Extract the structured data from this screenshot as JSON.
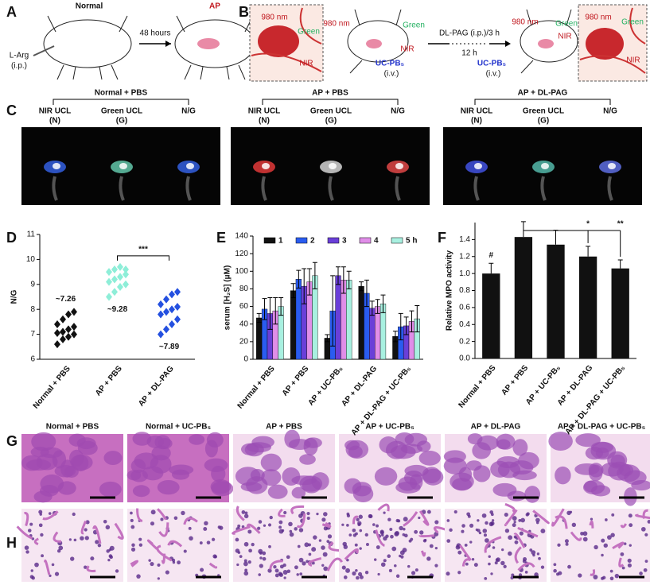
{
  "figure": {
    "A": {
      "label": "A",
      "normal": "Normal",
      "ap": "AP",
      "time": "48 hours",
      "injection": [
        "L-Arg",
        "(i.p.)"
      ]
    },
    "B": {
      "label": "B",
      "inset_left": {
        "laser": "980 nm",
        "green": "Green",
        "nir": "NIR"
      },
      "mouse_left": {
        "laser": "980 nm",
        "green": "Green",
        "nir": "NIR",
        "probe": [
          "UC-PB₅",
          "(i.v.)"
        ]
      },
      "treatment": "DL-PAG (i.p.)/3 h",
      "interval": "12 h",
      "mouse_right": {
        "laser": "980 nm",
        "green": "Green",
        "nir": "NIR",
        "probe": [
          "UC-PB₅",
          "(i.v.)"
        ]
      },
      "inset_right": {
        "laser": "980 nm",
        "green": "Green",
        "nir": "NIR"
      }
    },
    "C": {
      "label": "C",
      "groups": [
        {
          "title": "Normal + PBS",
          "columns": [
            [
              "NIR UCL",
              "(N)"
            ],
            [
              "Green UCL",
              "(G)"
            ],
            [
              "N/G"
            ]
          ]
        },
        {
          "title": "AP + PBS",
          "columns": [
            [
              "NIR UCL",
              "(N)"
            ],
            [
              "Green UCL",
              "(G)"
            ],
            [
              "N/G"
            ]
          ]
        },
        {
          "title": "AP + DL-PAG",
          "columns": [
            [
              "NIR UCL",
              "(N)"
            ],
            [
              "Green UCL",
              "(G)"
            ],
            [
              "N/G"
            ]
          ]
        }
      ]
    },
    "G": {
      "label": "G",
      "columns": [
        "Normal + PBS",
        "Normal + UC-PB₅",
        "AP + PBS",
        "AP + UC-PB₅",
        "AP + DL-PAG",
        "AP + DL-PAG + UC-PB₅"
      ]
    },
    "H": {
      "label": "H"
    }
  },
  "chart_data": [
    {
      "type": "strip",
      "label": "D",
      "ylabel": "N/G",
      "categories": [
        "Normal + PBS",
        "AP + PBS",
        "AP + DL-PAG"
      ],
      "colors": [
        "#111111",
        "#8eeed8",
        "#2450e0"
      ],
      "values": [
        [
          6.6,
          6.8,
          6.9,
          7.0,
          7.05,
          7.1,
          7.2,
          7.3,
          7.4,
          7.6,
          7.8,
          7.9
        ],
        [
          8.5,
          8.7,
          8.9,
          9.0,
          9.1,
          9.2,
          9.3,
          9.4,
          9.5,
          9.6,
          9.7,
          9.6
        ],
        [
          7.0,
          7.2,
          7.4,
          7.6,
          7.8,
          7.9,
          8.0,
          8.1,
          8.2,
          8.4,
          8.6,
          8.7
        ]
      ],
      "annotations": [
        "~7.26",
        "~9.28",
        "~7.89"
      ],
      "significance": "***",
      "ylim": [
        6,
        11
      ],
      "yticks": [
        6,
        7,
        8,
        9,
        10,
        11
      ]
    },
    {
      "type": "groupedbar",
      "label": "E",
      "ylabel": "serum [H₂S] (μM)",
      "categories": [
        "Normal + PBS",
        "AP + PBS",
        "AP + UC-PB₅",
        "AP + DL-PAG",
        "AP + DL-PAG + UC-PB₅"
      ],
      "series": [
        {
          "name": "1",
          "color": "#111111",
          "values": [
            47,
            78,
            24,
            83,
            26
          ],
          "errors": [
            5,
            8,
            4,
            5,
            6
          ]
        },
        {
          "name": "2",
          "color": "#2a5cf0",
          "values": [
            57,
            91,
            55,
            75,
            37
          ],
          "errors": [
            12,
            10,
            40,
            15,
            15
          ]
        },
        {
          "name": "3",
          "color": "#6a3fd8",
          "values": [
            52,
            83,
            95,
            58,
            38
          ],
          "errors": [
            18,
            20,
            10,
            8,
            10
          ]
        },
        {
          "name": "4",
          "color": "#e08ee8",
          "values": [
            55,
            88,
            90,
            60,
            43
          ],
          "errors": [
            15,
            15,
            15,
            8,
            12
          ]
        },
        {
          "name": "5 h",
          "color": "#a8f0e0",
          "values": [
            60,
            95,
            90,
            63,
            46
          ],
          "errors": [
            10,
            15,
            10,
            10,
            15
          ]
        }
      ],
      "ylim": [
        0,
        140
      ],
      "yticks": [
        0,
        20,
        40,
        60,
        80,
        100,
        120,
        140
      ]
    },
    {
      "type": "bar",
      "label": "F",
      "ylabel": "Relative MPO activity",
      "categories": [
        "Normal + PBS",
        "AP + PBS",
        "AP + UC-PB₅",
        "AP + DL-PAG",
        "AP + DL-PAG + UC-PB₅"
      ],
      "color": "#111111",
      "values": [
        1.0,
        1.43,
        1.34,
        1.2,
        1.06
      ],
      "errors": [
        0.12,
        0.18,
        0.17,
        0.12,
        0.1
      ],
      "annotations": [
        "#",
        null,
        null,
        "*",
        "**"
      ],
      "ylim": [
        0,
        1.6
      ],
      "yticks": [
        {
          "value": 0,
          "label": "0.0"
        },
        0.2,
        0.4,
        0.6,
        0.8,
        {
          "value": 1,
          "label": "1.0"
        },
        1.2,
        1.4
      ]
    }
  ]
}
